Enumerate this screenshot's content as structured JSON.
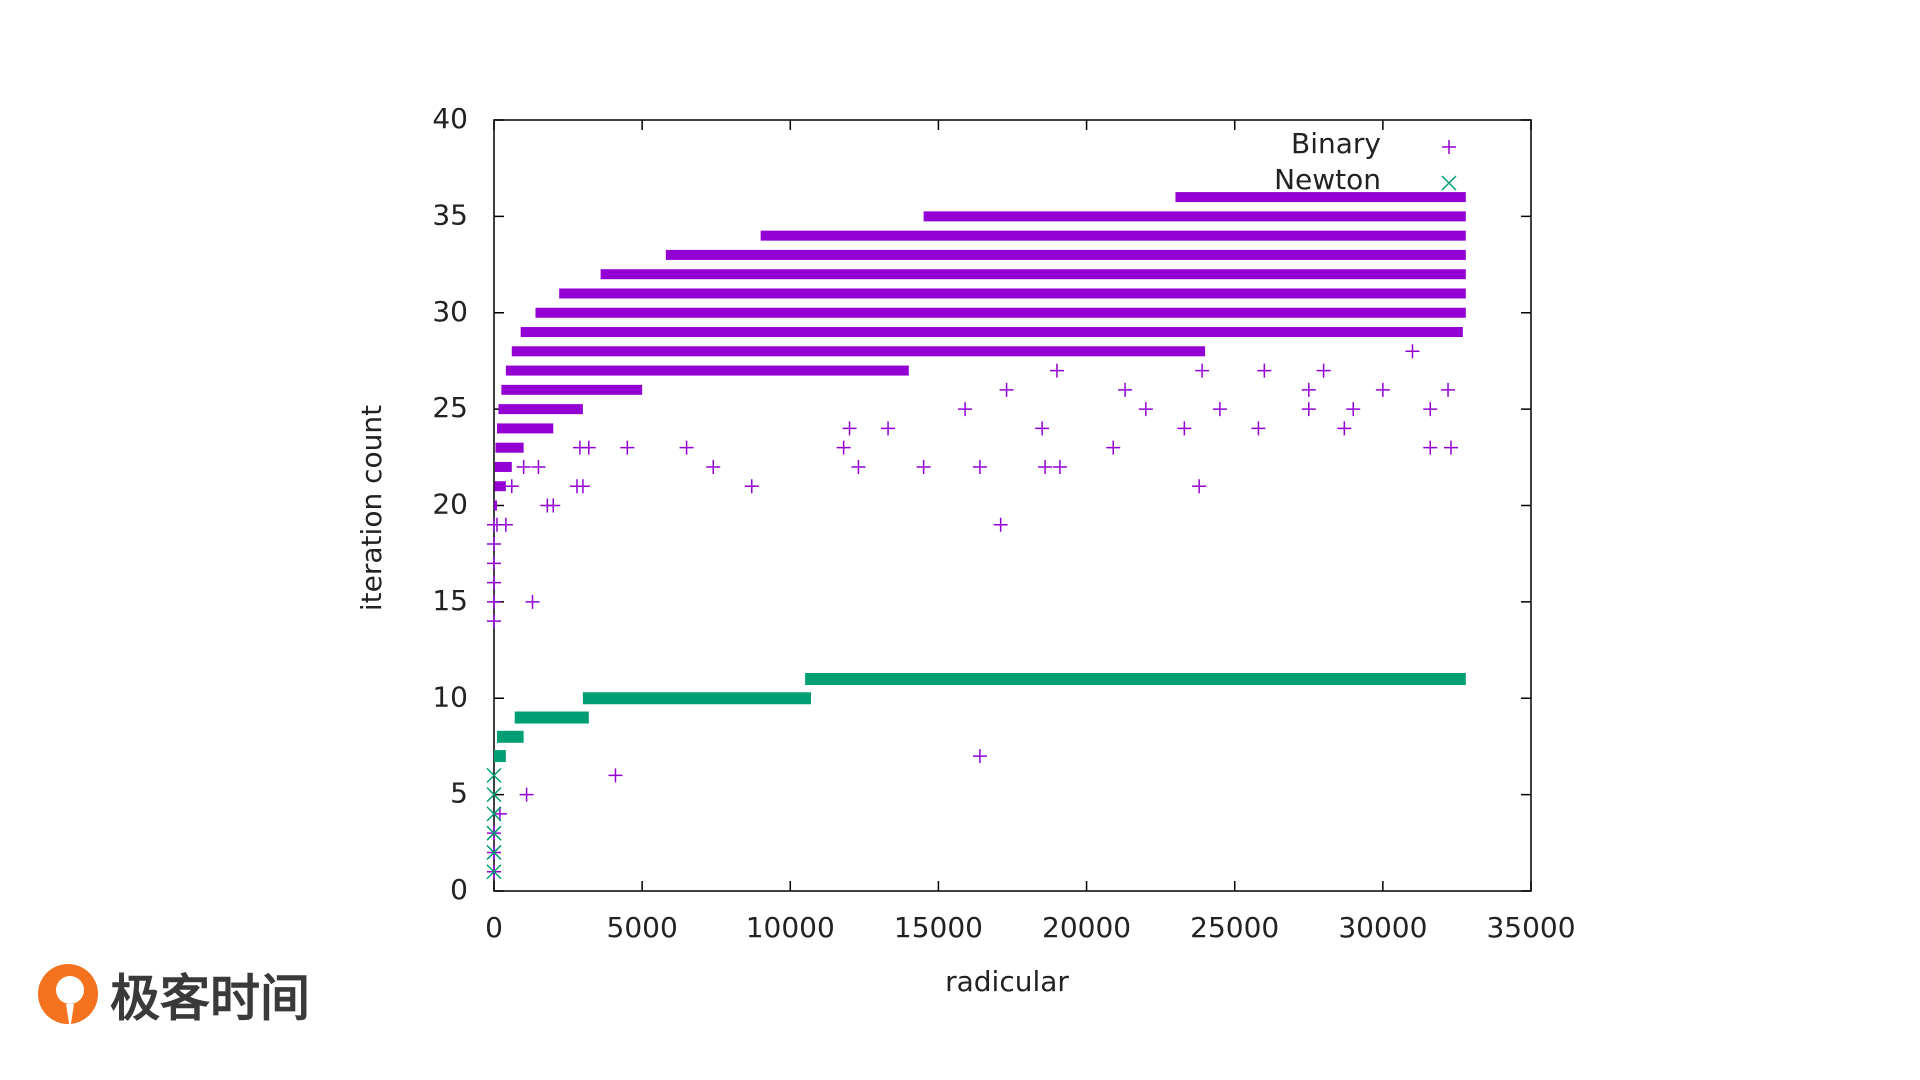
{
  "chart_data": {
    "type": "scatter",
    "xlabel": "radicular",
    "ylabel": "iteration count",
    "xlim": [
      0,
      35000
    ],
    "ylim": [
      0,
      40
    ],
    "xticks": [
      0,
      5000,
      10000,
      15000,
      20000,
      25000,
      30000,
      35000
    ],
    "yticks": [
      0,
      5,
      10,
      15,
      20,
      25,
      30,
      35,
      40
    ],
    "legend": "top-right",
    "series": [
      {
        "name": "Binary",
        "color": "#9400d3",
        "marker": "plus",
        "x": [
          0,
          0,
          0,
          0,
          0,
          0,
          100,
          400,
          200,
          0,
          0,
          0,
          1100,
          1300,
          4100,
          16400,
          1800,
          2000,
          2800,
          3000,
          600,
          1000,
          1500,
          2900,
          3200,
          4500,
          6500,
          7400,
          8700,
          11800,
          12300,
          14500,
          16400,
          17100,
          18600,
          19100,
          20900,
          23800,
          31600,
          32300,
          12000,
          13300,
          18500,
          23300,
          25800,
          28700,
          15900,
          22000,
          24500,
          27500,
          29000,
          31600,
          17300,
          21300,
          27500,
          30000,
          32200,
          19000,
          23900,
          26000,
          28000,
          31000
        ],
        "values": [
          14,
          15,
          16,
          17,
          18,
          19,
          19,
          19,
          4,
          3,
          2,
          1,
          5,
          15,
          6,
          7,
          20,
          20,
          21,
          21,
          21,
          22,
          22,
          23,
          23,
          23,
          23,
          22,
          21,
          23,
          22,
          22,
          22,
          19,
          22,
          22,
          23,
          21,
          23,
          23,
          24,
          24,
          24,
          24,
          24,
          24,
          25,
          25,
          25,
          25,
          25,
          25,
          26,
          26,
          26,
          26,
          26,
          27,
          27,
          27,
          27,
          28
        ],
        "bands": [
          {
            "y": 36,
            "x_start": 23000,
            "x_end": 32800
          },
          {
            "y": 35,
            "x_start": 14500,
            "x_end": 32800
          },
          {
            "y": 34,
            "x_start": 9000,
            "x_end": 32800
          },
          {
            "y": 33,
            "x_start": 5800,
            "x_end": 32800
          },
          {
            "y": 32,
            "x_start": 3600,
            "x_end": 32800
          },
          {
            "y": 31,
            "x_start": 2200,
            "x_end": 32800
          },
          {
            "y": 30,
            "x_start": 1400,
            "x_end": 32800
          },
          {
            "y": 29,
            "x_start": 900,
            "x_end": 32700
          },
          {
            "y": 28,
            "x_start": 600,
            "x_end": 24000
          },
          {
            "y": 27,
            "x_start": 400,
            "x_end": 14000
          },
          {
            "y": 26,
            "x_start": 250,
            "x_end": 5000
          },
          {
            "y": 25,
            "x_start": 150,
            "x_end": 3000
          },
          {
            "y": 24,
            "x_start": 100,
            "x_end": 2000
          },
          {
            "y": 23,
            "x_start": 50,
            "x_end": 1000
          },
          {
            "y": 22,
            "x_start": 30,
            "x_end": 600
          },
          {
            "y": 21,
            "x_start": 20,
            "x_end": 400
          },
          {
            "y": 20,
            "x_start": 0,
            "x_end": 100
          }
        ]
      },
      {
        "name": "Newton",
        "color": "#009e73",
        "marker": "cross",
        "x": [
          0,
          0,
          0,
          0,
          0,
          0
        ],
        "values": [
          6,
          5,
          4,
          3,
          2,
          1
        ],
        "bands": [
          {
            "y": 11,
            "x_start": 10500,
            "x_end": 32800
          },
          {
            "y": 10,
            "x_start": 3000,
            "x_end": 10700
          },
          {
            "y": 9,
            "x_start": 700,
            "x_end": 3200
          },
          {
            "y": 8,
            "x_start": 100,
            "x_end": 1000
          },
          {
            "y": 7,
            "x_start": 0,
            "x_end": 400
          }
        ]
      }
    ]
  },
  "watermark": "极客时间"
}
